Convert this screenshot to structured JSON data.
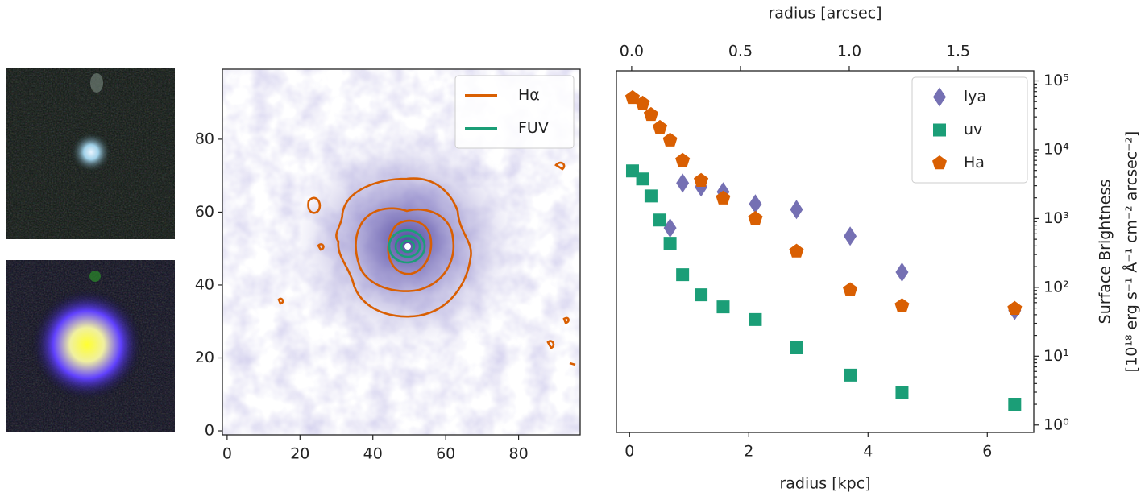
{
  "chart_data": [
    {
      "type": "image",
      "series": [
        {
          "name": "Hα",
          "color": "#d95f02"
        },
        {
          "name": "FUV",
          "color": "#1b9e77"
        }
      ],
      "xlim": [
        -1.3,
        96.9
      ],
      "ylim": [
        -1.1,
        99.2
      ],
      "xticks": [
        0,
        20,
        40,
        60,
        80
      ],
      "yticks": [
        0,
        20,
        40,
        60,
        80
      ],
      "legend": "upper right"
    },
    {
      "type": "scatter",
      "x_label": "radius [kpc]",
      "x2_label": "radius [arcsec]",
      "y_label": [
        "Surface Brightness",
        "[10¹⁸ erg s⁻¹ Å⁻¹ cm⁻² arcsec⁻²]"
      ],
      "xlim": [
        -0.22,
        6.78
      ],
      "xticks": [
        0,
        2,
        4,
        6
      ],
      "x2lim": [
        -0.07,
        1.848
      ],
      "x2ticks": [
        {
          "value": 0,
          "label": "0.0"
        },
        0.5,
        {
          "value": 1,
          "label": "1.0"
        },
        1.5
      ],
      "ylim": [
        0.78,
        140000
      ],
      "log_y": true,
      "yticks": [
        {
          "value": 1,
          "label": "10⁰"
        },
        {
          "value": 10,
          "label": "10¹"
        },
        {
          "value": 100,
          "label": "10²"
        },
        {
          "value": 1000,
          "label": "10³"
        },
        {
          "value": 10000,
          "label": "10⁴"
        },
        {
          "value": 100000,
          "label": "10⁵"
        }
      ],
      "legend": "upper right",
      "series": [
        {
          "name": "lya",
          "color": "#7570b3",
          "marker": "diamond",
          "x": [
            0.68,
            0.89,
            1.2,
            1.57,
            2.11,
            2.8,
            3.7,
            4.57,
            6.46
          ],
          "values": [
            728,
            3280,
            2870,
            2440,
            1630,
            1350,
            556,
            166,
            46
          ]
        },
        {
          "name": "uv",
          "color": "#1b9e77",
          "marker": "square",
          "x": [
            0.05,
            0.22,
            0.36,
            0.51,
            0.68,
            0.89,
            1.2,
            1.57,
            2.11,
            2.8,
            3.7,
            4.57,
            6.46
          ],
          "values": [
            4920,
            3760,
            2130,
            953,
            437,
            153,
            78,
            52,
            34,
            13.2,
            5.3,
            3.0,
            2.0
          ]
        },
        {
          "name": "Ha",
          "color": "#d95f02",
          "marker": "pentagon",
          "x": [
            0.05,
            0.22,
            0.36,
            0.51,
            0.68,
            0.89,
            1.2,
            1.57,
            2.11,
            2.8,
            3.7,
            4.57,
            6.46
          ],
          "values": [
            56900,
            47100,
            32300,
            21000,
            13700,
            6970,
            3560,
            1970,
            1000,
            334,
            92,
            54,
            49
          ]
        }
      ]
    }
  ]
}
